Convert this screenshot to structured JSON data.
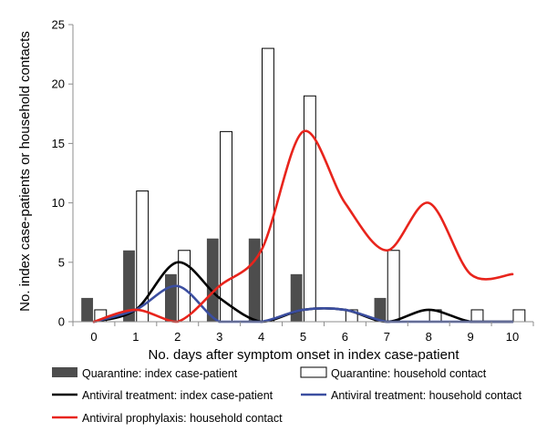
{
  "chart_data": {
    "type": "bar",
    "xlabel": "No. days after symptom onset in index case-patient",
    "ylabel": "No. index case-patients or household contacts",
    "x": [
      0,
      1,
      2,
      3,
      4,
      5,
      6,
      7,
      8,
      9,
      10
    ],
    "ylim": [
      0,
      25
    ],
    "yticks": [
      0,
      5,
      10,
      15,
      20,
      25
    ],
    "legend_position": "bottom",
    "series": [
      {
        "name": "Quarantine: index case-patient",
        "kind": "bar",
        "color": "#4d4d4d",
        "values": [
          2,
          6,
          4,
          7,
          7,
          4,
          0,
          2,
          0,
          0,
          0
        ]
      },
      {
        "name": "Quarantine: household contact",
        "kind": "bar",
        "color": "#ffffff",
        "values": [
          1,
          11,
          6,
          16,
          23,
          19,
          1,
          6,
          1,
          1,
          1
        ]
      },
      {
        "name": "Antiviral treatment: index case-patient",
        "kind": "line",
        "color": "#000000",
        "values": [
          0,
          1,
          5,
          2,
          0,
          1,
          1,
          0,
          1,
          0,
          0
        ]
      },
      {
        "name": "Antiviral treatment: household contact",
        "kind": "line",
        "color": "#3b4ea0",
        "values": [
          0,
          1,
          3,
          0,
          0,
          1,
          1,
          0,
          0,
          0,
          0
        ]
      },
      {
        "name": "Antiviral prophylaxis: household contact",
        "kind": "line",
        "color": "#e8241c",
        "values": [
          0,
          1,
          0,
          3,
          6,
          16,
          10,
          6,
          10,
          4,
          4
        ]
      }
    ]
  }
}
